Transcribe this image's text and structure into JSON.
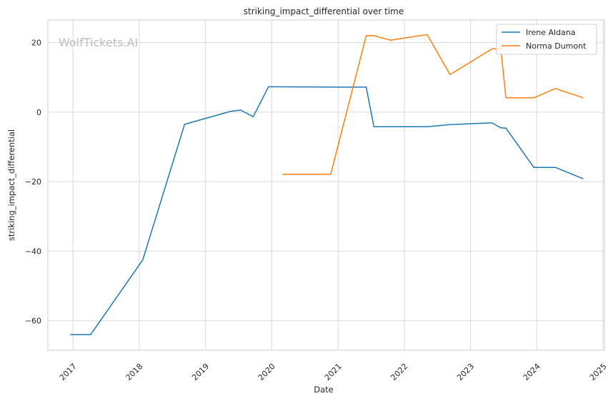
{
  "chart_data": {
    "type": "line",
    "title": "striking_impact_differential over time",
    "xlabel": "Date",
    "ylabel": "striking_impact_differential",
    "watermark": "WolfTickets.AI",
    "x_ticks": [
      "2017",
      "2018",
      "2019",
      "2020",
      "2021",
      "2022",
      "2023",
      "2024",
      "2025"
    ],
    "y_ticks": [
      20,
      0,
      -20,
      -40,
      -60
    ],
    "xlim": [
      "2016-08-15",
      "2025-01-08"
    ],
    "ylim": [
      -68.5,
      26.5
    ],
    "grid": true,
    "legend_position": "top-right",
    "series": [
      {
        "name": "Irene Aldana",
        "color": "#1f77b4",
        "points": [
          [
            "2016-12-17",
            -64
          ],
          [
            "2017-04-08",
            -64
          ],
          [
            "2018-01-20",
            -42.5
          ],
          [
            "2018-09-08",
            -3.5
          ],
          [
            "2019-05-18",
            0.2
          ],
          [
            "2019-07-13",
            0.6
          ],
          [
            "2019-09-21",
            -1.3
          ],
          [
            "2019-12-14",
            7.3
          ],
          [
            "2021-01-23",
            7.2
          ],
          [
            "2021-06-05",
            7.2
          ],
          [
            "2021-07-17",
            -4.2
          ],
          [
            "2022-05-07",
            -4.2
          ],
          [
            "2022-09-10",
            -3.6
          ],
          [
            "2023-04-29",
            -3.1
          ],
          [
            "2023-06-17",
            -4.5
          ],
          [
            "2023-07-15",
            -4.6
          ],
          [
            "2023-12-16",
            -15.9
          ],
          [
            "2024-04-13",
            -15.9
          ],
          [
            "2024-09-14",
            -19.2
          ]
        ]
      },
      {
        "name": "Norma Dumont",
        "color": "#ff7f0e",
        "points": [
          [
            "2020-02-29",
            -17.9
          ],
          [
            "2020-11-21",
            -17.9
          ],
          [
            "2021-06-05",
            22
          ],
          [
            "2021-07-17",
            22
          ],
          [
            "2021-10-16",
            20.7
          ],
          [
            "2022-05-07",
            22.3
          ],
          [
            "2022-09-10",
            10.8
          ],
          [
            "2023-04-29",
            18.2
          ],
          [
            "2023-06-17",
            18.2
          ],
          [
            "2023-07-15",
            4.1
          ],
          [
            "2023-12-16",
            4.1
          ],
          [
            "2024-04-13",
            6.8
          ],
          [
            "2024-09-14",
            4.1
          ]
        ]
      }
    ]
  }
}
